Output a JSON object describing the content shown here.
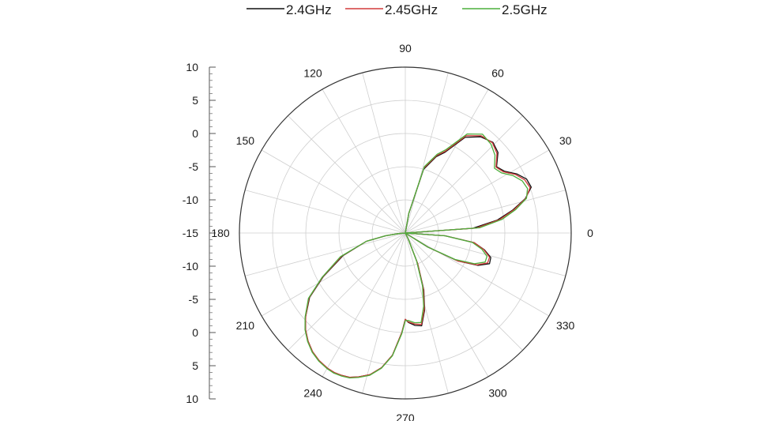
{
  "chart_data": {
    "type": "line",
    "subtype": "polar",
    "title": "",
    "angle_unit": "degrees",
    "angular_ticks": [
      0,
      30,
      60,
      90,
      120,
      150,
      180,
      210,
      240,
      270,
      300,
      330
    ],
    "radial_range": [
      -15,
      10
    ],
    "radial_tick_labels": [
      "10",
      "5",
      "0",
      "-5",
      "-10",
      "-15",
      "-10",
      "-5",
      "0",
      "5",
      "10"
    ],
    "grid": true,
    "legend_position": "top",
    "series": [
      {
        "name": "2.4GHz",
        "color": "#111111",
        "points": [
          [
            0,
            -15
          ],
          [
            4,
            -4.8
          ],
          [
            8,
            -1.0
          ],
          [
            12,
            1.5
          ],
          [
            16,
            3.8
          ],
          [
            20,
            5.2
          ],
          [
            24,
            5.0
          ],
          [
            28,
            4.0
          ],
          [
            32,
            2.6
          ],
          [
            36,
            2.0
          ],
          [
            41,
            3.5
          ],
          [
            46,
            4.0
          ],
          [
            52,
            3.4
          ],
          [
            58,
            2.0
          ],
          [
            64,
            -1.5
          ],
          [
            68,
            -2.6
          ],
          [
            74,
            -5.0
          ],
          [
            80,
            -12
          ],
          [
            90,
            -15
          ],
          [
            180,
            -15
          ],
          [
            185,
            -14
          ],
          [
            188,
            -12
          ],
          [
            192,
            -9
          ],
          [
            200,
            -5
          ],
          [
            208,
            -1
          ],
          [
            214,
            2.4
          ],
          [
            220,
            4.6
          ],
          [
            224,
            5.9
          ],
          [
            228,
            6.9
          ],
          [
            232,
            7.7
          ],
          [
            236,
            8.2
          ],
          [
            240,
            8.5
          ],
          [
            243,
            8.6
          ],
          [
            246,
            8.5
          ],
          [
            249,
            8.3
          ],
          [
            252,
            7.8
          ],
          [
            256,
            7.0
          ],
          [
            260,
            5.6
          ],
          [
            264,
            3.5
          ],
          [
            268,
            0.0
          ],
          [
            270,
            -2.0
          ],
          [
            272,
            -1.5
          ],
          [
            276,
            -1.0
          ],
          [
            280,
            -0.8
          ],
          [
            284,
            -3
          ],
          [
            288,
            -6
          ],
          [
            292,
            -10
          ],
          [
            296,
            -14
          ],
          [
            300,
            -15
          ],
          [
            324,
            -15
          ],
          [
            328,
            -11
          ],
          [
            332,
            -6
          ],
          [
            336,
            -3.0
          ],
          [
            340,
            -1.5
          ],
          [
            344,
            -1.6
          ],
          [
            348,
            -2.8
          ],
          [
            352,
            -4.5
          ],
          [
            356,
            -9
          ],
          [
            360,
            -15
          ]
        ]
      },
      {
        "name": "2.45GHz",
        "color": "#d23a3a",
        "points": [
          [
            0,
            -15
          ],
          [
            4,
            -4.3
          ],
          [
            8,
            -0.7
          ],
          [
            12,
            1.7
          ],
          [
            16,
            3.9
          ],
          [
            20,
            5.0
          ],
          [
            24,
            4.7
          ],
          [
            28,
            3.8
          ],
          [
            32,
            2.4
          ],
          [
            36,
            1.9
          ],
          [
            41,
            3.3
          ],
          [
            46,
            3.9
          ],
          [
            52,
            3.6
          ],
          [
            58,
            2.3
          ],
          [
            64,
            -1.3
          ],
          [
            68,
            -2.4
          ],
          [
            74,
            -4.8
          ],
          [
            80,
            -12
          ],
          [
            90,
            -15
          ],
          [
            180,
            -15
          ],
          [
            185,
            -14
          ],
          [
            188,
            -12
          ],
          [
            192,
            -9
          ],
          [
            200,
            -4.8
          ],
          [
            208,
            -0.9
          ],
          [
            214,
            2.5
          ],
          [
            220,
            4.6
          ],
          [
            224,
            5.9
          ],
          [
            228,
            6.9
          ],
          [
            232,
            7.7
          ],
          [
            236,
            8.2
          ],
          [
            240,
            8.5
          ],
          [
            243,
            8.6
          ],
          [
            246,
            8.5
          ],
          [
            249,
            8.3
          ],
          [
            252,
            7.8
          ],
          [
            256,
            7.0
          ],
          [
            260,
            5.6
          ],
          [
            264,
            3.5
          ],
          [
            268,
            0.0
          ],
          [
            270,
            -2.0
          ],
          [
            272,
            -1.6
          ],
          [
            276,
            -1.2
          ],
          [
            280,
            -1.0
          ],
          [
            284,
            -3.2
          ],
          [
            288,
            -6.2
          ],
          [
            292,
            -10
          ],
          [
            296,
            -14
          ],
          [
            300,
            -15
          ],
          [
            324,
            -15
          ],
          [
            328,
            -11
          ],
          [
            332,
            -6
          ],
          [
            336,
            -3.2
          ],
          [
            340,
            -1.8
          ],
          [
            344,
            -1.8
          ],
          [
            348,
            -2.9
          ],
          [
            352,
            -4.5
          ],
          [
            356,
            -9
          ],
          [
            360,
            -15
          ]
        ]
      },
      {
        "name": "2.5GHz",
        "color": "#4caf3c",
        "points": [
          [
            0,
            -15
          ],
          [
            4,
            -3.8
          ],
          [
            8,
            -0.3
          ],
          [
            12,
            2.0
          ],
          [
            16,
            4.0
          ],
          [
            20,
            4.6
          ],
          [
            24,
            4.3
          ],
          [
            28,
            3.4
          ],
          [
            32,
            2.1
          ],
          [
            36,
            1.6
          ],
          [
            41,
            2.9
          ],
          [
            46,
            3.6
          ],
          [
            52,
            3.9
          ],
          [
            58,
            2.6
          ],
          [
            64,
            -1.0
          ],
          [
            68,
            -2.2
          ],
          [
            74,
            -4.6
          ],
          [
            80,
            -12
          ],
          [
            90,
            -15
          ],
          [
            180,
            -15
          ],
          [
            185,
            -14
          ],
          [
            188,
            -12
          ],
          [
            192,
            -9
          ],
          [
            200,
            -4.6
          ],
          [
            208,
            -0.8
          ],
          [
            214,
            2.6
          ],
          [
            220,
            4.7
          ],
          [
            224,
            6.0
          ],
          [
            228,
            7.0
          ],
          [
            232,
            7.8
          ],
          [
            236,
            8.3
          ],
          [
            240,
            8.6
          ],
          [
            243,
            8.7
          ],
          [
            246,
            8.6
          ],
          [
            249,
            8.4
          ],
          [
            252,
            7.9
          ],
          [
            256,
            7.1
          ],
          [
            260,
            5.7
          ],
          [
            264,
            3.6
          ],
          [
            268,
            0.2
          ],
          [
            270,
            -1.8
          ],
          [
            272,
            -1.8
          ],
          [
            276,
            -1.4
          ],
          [
            280,
            -1.3
          ],
          [
            284,
            -3.6
          ],
          [
            288,
            -6.6
          ],
          [
            292,
            -10.5
          ],
          [
            296,
            -14
          ],
          [
            300,
            -15
          ],
          [
            324,
            -15
          ],
          [
            328,
            -11
          ],
          [
            332,
            -6.5
          ],
          [
            336,
            -3.6
          ],
          [
            340,
            -2.2
          ],
          [
            344,
            -2.2
          ],
          [
            348,
            -3.2
          ],
          [
            352,
            -4.8
          ],
          [
            356,
            -9
          ],
          [
            360,
            -15
          ]
        ]
      }
    ]
  }
}
